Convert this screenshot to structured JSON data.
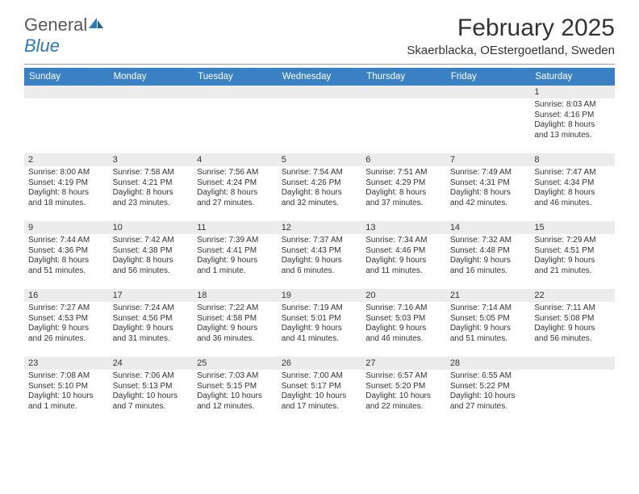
{
  "logo": {
    "text1": "General",
    "text2": "Blue"
  },
  "title": "February 2025",
  "subtitle": "Skaerblacka, OEstergoetland, Sweden",
  "colors": {
    "header_bg": "#3a81c4",
    "header_text": "#ffffff",
    "daynum_bg": "#ececec",
    "text": "#333333",
    "logo_gray": "#5a5a5a",
    "logo_blue": "#2a7ab9"
  },
  "day_headers": [
    "Sunday",
    "Monday",
    "Tuesday",
    "Wednesday",
    "Thursday",
    "Friday",
    "Saturday"
  ],
  "weeks": [
    [
      {
        "n": "",
        "lines": []
      },
      {
        "n": "",
        "lines": []
      },
      {
        "n": "",
        "lines": []
      },
      {
        "n": "",
        "lines": []
      },
      {
        "n": "",
        "lines": []
      },
      {
        "n": "",
        "lines": []
      },
      {
        "n": "1",
        "lines": [
          "Sunrise: 8:03 AM",
          "Sunset: 4:16 PM",
          "Daylight: 8 hours",
          "and 13 minutes."
        ]
      }
    ],
    [
      {
        "n": "2",
        "lines": [
          "Sunrise: 8:00 AM",
          "Sunset: 4:19 PM",
          "Daylight: 8 hours",
          "and 18 minutes."
        ]
      },
      {
        "n": "3",
        "lines": [
          "Sunrise: 7:58 AM",
          "Sunset: 4:21 PM",
          "Daylight: 8 hours",
          "and 23 minutes."
        ]
      },
      {
        "n": "4",
        "lines": [
          "Sunrise: 7:56 AM",
          "Sunset: 4:24 PM",
          "Daylight: 8 hours",
          "and 27 minutes."
        ]
      },
      {
        "n": "5",
        "lines": [
          "Sunrise: 7:54 AM",
          "Sunset: 4:26 PM",
          "Daylight: 8 hours",
          "and 32 minutes."
        ]
      },
      {
        "n": "6",
        "lines": [
          "Sunrise: 7:51 AM",
          "Sunset: 4:29 PM",
          "Daylight: 8 hours",
          "and 37 minutes."
        ]
      },
      {
        "n": "7",
        "lines": [
          "Sunrise: 7:49 AM",
          "Sunset: 4:31 PM",
          "Daylight: 8 hours",
          "and 42 minutes."
        ]
      },
      {
        "n": "8",
        "lines": [
          "Sunrise: 7:47 AM",
          "Sunset: 4:34 PM",
          "Daylight: 8 hours",
          "and 46 minutes."
        ]
      }
    ],
    [
      {
        "n": "9",
        "lines": [
          "Sunrise: 7:44 AM",
          "Sunset: 4:36 PM",
          "Daylight: 8 hours",
          "and 51 minutes."
        ]
      },
      {
        "n": "10",
        "lines": [
          "Sunrise: 7:42 AM",
          "Sunset: 4:38 PM",
          "Daylight: 8 hours",
          "and 56 minutes."
        ]
      },
      {
        "n": "11",
        "lines": [
          "Sunrise: 7:39 AM",
          "Sunset: 4:41 PM",
          "Daylight: 9 hours",
          "and 1 minute."
        ]
      },
      {
        "n": "12",
        "lines": [
          "Sunrise: 7:37 AM",
          "Sunset: 4:43 PM",
          "Daylight: 9 hours",
          "and 6 minutes."
        ]
      },
      {
        "n": "13",
        "lines": [
          "Sunrise: 7:34 AM",
          "Sunset: 4:46 PM",
          "Daylight: 9 hours",
          "and 11 minutes."
        ]
      },
      {
        "n": "14",
        "lines": [
          "Sunrise: 7:32 AM",
          "Sunset: 4:48 PM",
          "Daylight: 9 hours",
          "and 16 minutes."
        ]
      },
      {
        "n": "15",
        "lines": [
          "Sunrise: 7:29 AM",
          "Sunset: 4:51 PM",
          "Daylight: 9 hours",
          "and 21 minutes."
        ]
      }
    ],
    [
      {
        "n": "16",
        "lines": [
          "Sunrise: 7:27 AM",
          "Sunset: 4:53 PM",
          "Daylight: 9 hours",
          "and 26 minutes."
        ]
      },
      {
        "n": "17",
        "lines": [
          "Sunrise: 7:24 AM",
          "Sunset: 4:56 PM",
          "Daylight: 9 hours",
          "and 31 minutes."
        ]
      },
      {
        "n": "18",
        "lines": [
          "Sunrise: 7:22 AM",
          "Sunset: 4:58 PM",
          "Daylight: 9 hours",
          "and 36 minutes."
        ]
      },
      {
        "n": "19",
        "lines": [
          "Sunrise: 7:19 AM",
          "Sunset: 5:01 PM",
          "Daylight: 9 hours",
          "and 41 minutes."
        ]
      },
      {
        "n": "20",
        "lines": [
          "Sunrise: 7:16 AM",
          "Sunset: 5:03 PM",
          "Daylight: 9 hours",
          "and 46 minutes."
        ]
      },
      {
        "n": "21",
        "lines": [
          "Sunrise: 7:14 AM",
          "Sunset: 5:05 PM",
          "Daylight: 9 hours",
          "and 51 minutes."
        ]
      },
      {
        "n": "22",
        "lines": [
          "Sunrise: 7:11 AM",
          "Sunset: 5:08 PM",
          "Daylight: 9 hours",
          "and 56 minutes."
        ]
      }
    ],
    [
      {
        "n": "23",
        "lines": [
          "Sunrise: 7:08 AM",
          "Sunset: 5:10 PM",
          "Daylight: 10 hours",
          "and 1 minute."
        ]
      },
      {
        "n": "24",
        "lines": [
          "Sunrise: 7:06 AM",
          "Sunset: 5:13 PM",
          "Daylight: 10 hours",
          "and 7 minutes."
        ]
      },
      {
        "n": "25",
        "lines": [
          "Sunrise: 7:03 AM",
          "Sunset: 5:15 PM",
          "Daylight: 10 hours",
          "and 12 minutes."
        ]
      },
      {
        "n": "26",
        "lines": [
          "Sunrise: 7:00 AM",
          "Sunset: 5:17 PM",
          "Daylight: 10 hours",
          "and 17 minutes."
        ]
      },
      {
        "n": "27",
        "lines": [
          "Sunrise: 6:57 AM",
          "Sunset: 5:20 PM",
          "Daylight: 10 hours",
          "and 22 minutes."
        ]
      },
      {
        "n": "28",
        "lines": [
          "Sunrise: 6:55 AM",
          "Sunset: 5:22 PM",
          "Daylight: 10 hours",
          "and 27 minutes."
        ]
      },
      {
        "n": "",
        "lines": []
      }
    ]
  ]
}
